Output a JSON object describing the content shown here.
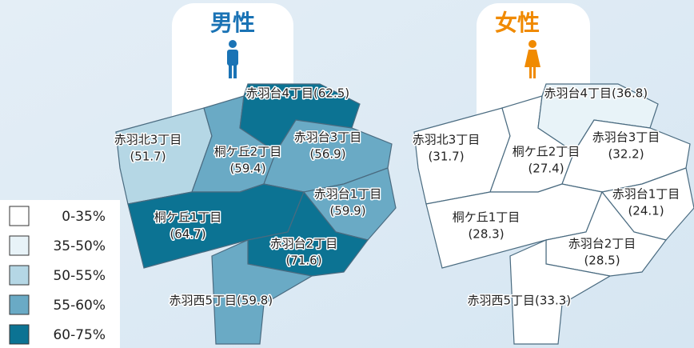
{
  "legend": {
    "bins": [
      {
        "label": "0-35%",
        "range": [
          0,
          35
        ],
        "color": "#ffffff"
      },
      {
        "label": "35-50%",
        "range": [
          35,
          50
        ],
        "color": "#e8f3f8"
      },
      {
        "label": "50-55%",
        "range": [
          50,
          55
        ],
        "color": "#b5d7e5"
      },
      {
        "label": "55-60%",
        "range": [
          55,
          60
        ],
        "color": "#6aaac5"
      },
      {
        "label": "60-75%",
        "range": [
          60,
          75
        ],
        "color": "#0c7393"
      }
    ]
  },
  "maps": [
    {
      "title": "男性",
      "color": "#1a73b5",
      "regions": [
        {
          "name": "赤羽北3丁目",
          "value": 51.7,
          "value_label": "(51.7)"
        },
        {
          "name": "桐ケ丘2丁目",
          "value": 59.4,
          "value_label": "(59.4)"
        },
        {
          "name": "赤羽台4丁目",
          "value": 62.5,
          "value_label": "(62.5)"
        },
        {
          "name": "赤羽台3丁目",
          "value": 56.9,
          "value_label": "(56.9)"
        },
        {
          "name": "赤羽台1丁目",
          "value": 59.9,
          "value_label": "(59.9)"
        },
        {
          "name": "桐ケ丘1丁目",
          "value": 64.7,
          "value_label": "(64.7)"
        },
        {
          "name": "赤羽台2丁目",
          "value": 71.6,
          "value_label": "(71.6)"
        },
        {
          "name": "赤羽西5丁目",
          "value": 59.8,
          "value_label": "(59.8)"
        }
      ]
    },
    {
      "title": "女性",
      "color": "#f08a00",
      "regions": [
        {
          "name": "赤羽北3丁目",
          "value": 31.7,
          "value_label": "(31.7)"
        },
        {
          "name": "桐ケ丘2丁目",
          "value": 27.4,
          "value_label": "(27.4)"
        },
        {
          "name": "赤羽台4丁目",
          "value": 36.8,
          "value_label": "(36.8)"
        },
        {
          "name": "赤羽台3丁目",
          "value": 32.2,
          "value_label": "(32.2)"
        },
        {
          "name": "赤羽台1丁目",
          "value": 24.1,
          "value_label": "(24.1)"
        },
        {
          "name": "桐ケ丘1丁目",
          "value": 28.3,
          "value_label": "(28.3)"
        },
        {
          "name": "赤羽台2丁目",
          "value": 28.5,
          "value_label": "(28.5)"
        },
        {
          "name": "赤羽西5丁目",
          "value": 33.3,
          "value_label": "(33.3)"
        }
      ]
    }
  ]
}
